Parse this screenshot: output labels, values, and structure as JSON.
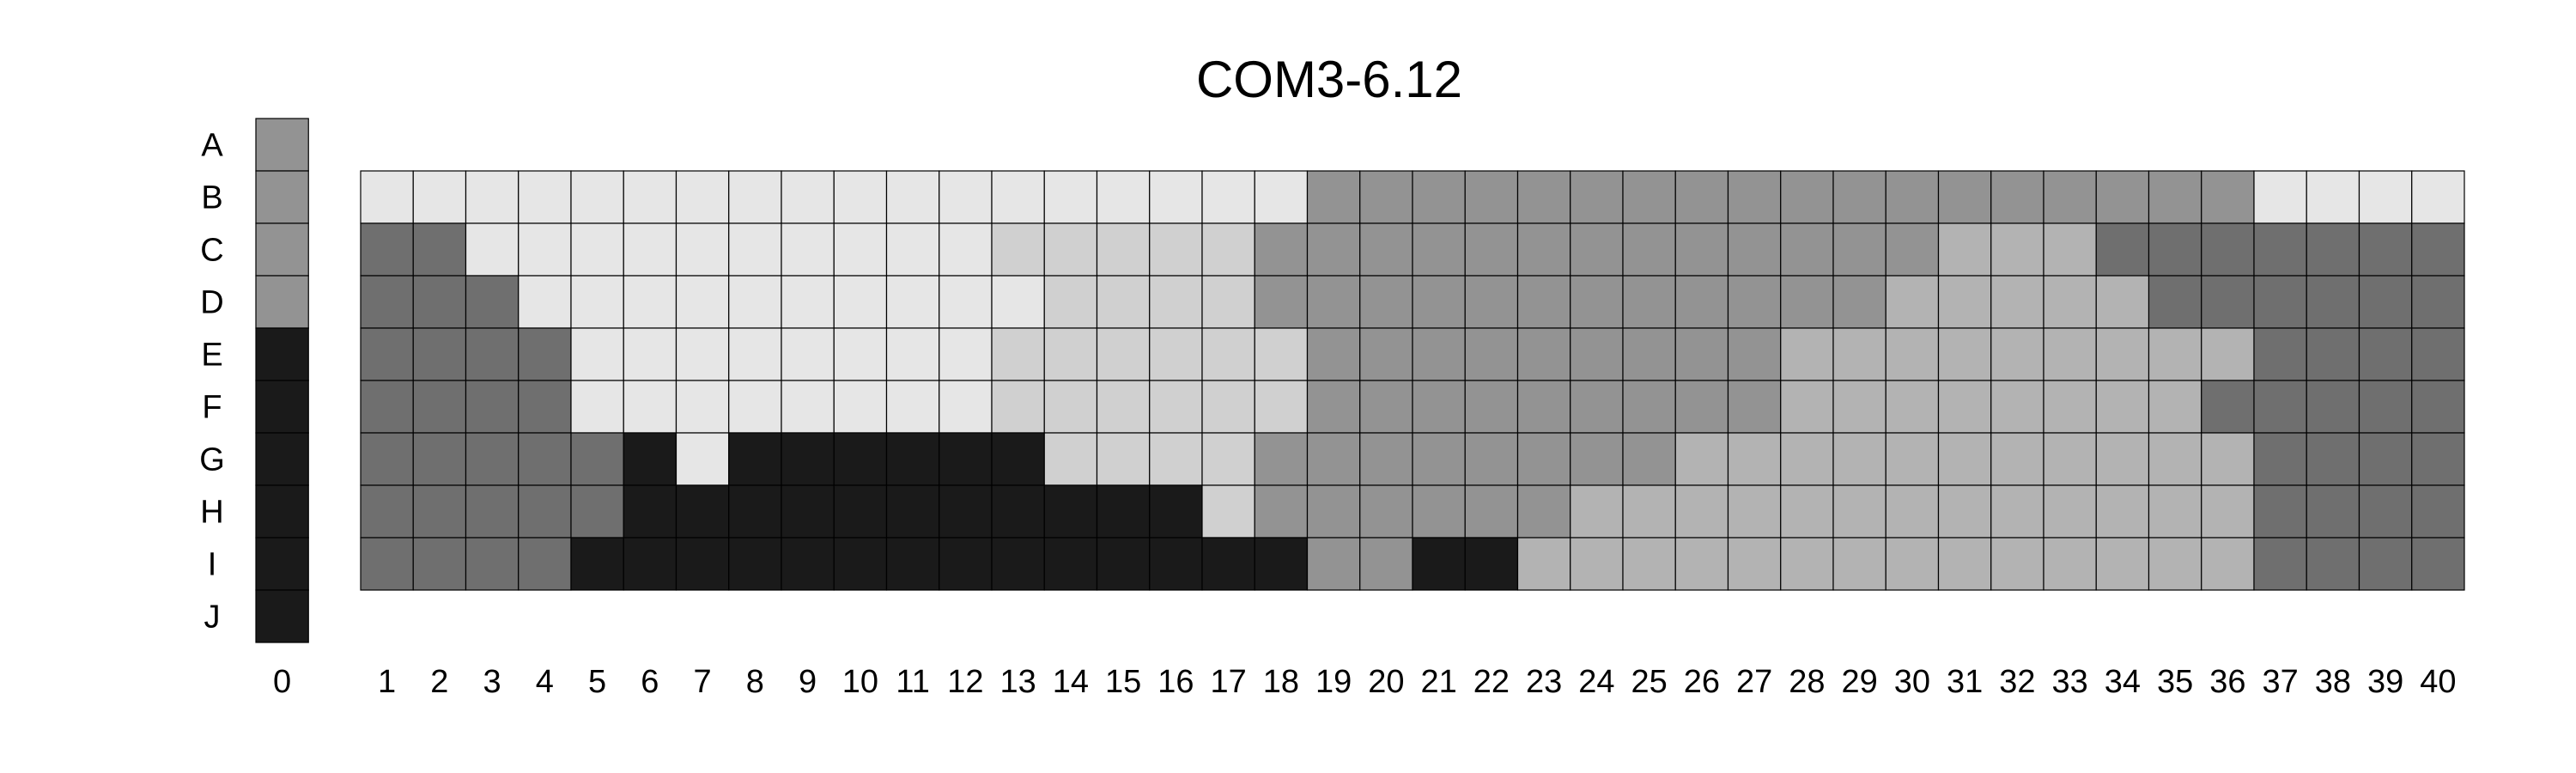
{
  "chart_data": {
    "type": "heatmap",
    "title": "COM3-6.12",
    "row_labels": [
      "A",
      "B",
      "C",
      "D",
      "E",
      "F",
      "G",
      "H",
      "I",
      "J"
    ],
    "col_labels": [
      "0",
      "1",
      "2",
      "3",
      "4",
      "5",
      "6",
      "7",
      "8",
      "9",
      "10",
      "11",
      "12",
      "13",
      "14",
      "15",
      "16",
      "17",
      "18",
      "19",
      "20",
      "21",
      "22",
      "23",
      "24",
      "25",
      "26",
      "27",
      "28",
      "29",
      "30",
      "31",
      "32",
      "33",
      "34",
      "35",
      "36",
      "37",
      "38",
      "39",
      "40"
    ],
    "level_colors": {
      "0": "#e6e6e6",
      "1": "#d0d0d0",
      "2": "#b3b3b3",
      "3": "#939393",
      "4": "#6f6f6f",
      "5": "#1a1a1a"
    },
    "column_0": [
      3,
      3,
      3,
      3,
      5,
      5,
      5,
      5,
      5,
      5
    ],
    "grid_rows": [
      "B",
      "C",
      "D",
      "E",
      "F",
      "G",
      "H",
      "I"
    ],
    "grid": [
      [
        0,
        0,
        0,
        0,
        0,
        0,
        0,
        0,
        0,
        0,
        0,
        0,
        0,
        0,
        0,
        0,
        0,
        0,
        3,
        3,
        3,
        3,
        3,
        3,
        3,
        3,
        3,
        3,
        3,
        3,
        3,
        3,
        3,
        3,
        3,
        3,
        0,
        0,
        0,
        0
      ],
      [
        4,
        4,
        0,
        0,
        0,
        0,
        0,
        0,
        0,
        0,
        0,
        0,
        1,
        1,
        1,
        1,
        1,
        3,
        3,
        3,
        3,
        3,
        3,
        3,
        3,
        3,
        3,
        3,
        3,
        3,
        2,
        2,
        2,
        4,
        4,
        4,
        4,
        4,
        4,
        4
      ],
      [
        4,
        4,
        4,
        0,
        0,
        0,
        0,
        0,
        0,
        0,
        0,
        0,
        0,
        1,
        1,
        1,
        1,
        3,
        3,
        3,
        3,
        3,
        3,
        3,
        3,
        3,
        3,
        3,
        3,
        2,
        2,
        2,
        2,
        2,
        4,
        4,
        4,
        4,
        4,
        4
      ],
      [
        4,
        4,
        4,
        4,
        0,
        0,
        0,
        0,
        0,
        0,
        0,
        0,
        1,
        1,
        1,
        1,
        1,
        1,
        3,
        3,
        3,
        3,
        3,
        3,
        3,
        3,
        3,
        2,
        2,
        2,
        2,
        2,
        2,
        2,
        2,
        2,
        4,
        4,
        4,
        4
      ],
      [
        4,
        4,
        4,
        4,
        0,
        0,
        0,
        0,
        0,
        0,
        0,
        0,
        1,
        1,
        1,
        1,
        1,
        1,
        3,
        3,
        3,
        3,
        3,
        3,
        3,
        3,
        3,
        2,
        2,
        2,
        2,
        2,
        2,
        2,
        2,
        4,
        4,
        4,
        4,
        4
      ],
      [
        4,
        4,
        4,
        4,
        4,
        5,
        0,
        5,
        5,
        5,
        5,
        5,
        5,
        1,
        1,
        1,
        1,
        3,
        3,
        3,
        3,
        3,
        3,
        3,
        3,
        2,
        2,
        2,
        2,
        2,
        2,
        2,
        2,
        2,
        2,
        2,
        4,
        4,
        4,
        4
      ],
      [
        4,
        4,
        4,
        4,
        4,
        5,
        5,
        5,
        5,
        5,
        5,
        5,
        5,
        5,
        5,
        5,
        1,
        3,
        3,
        3,
        3,
        3,
        3,
        2,
        2,
        2,
        2,
        2,
        2,
        2,
        2,
        2,
        2,
        2,
        2,
        2,
        4,
        4,
        4,
        4
      ],
      [
        4,
        4,
        4,
        4,
        5,
        5,
        5,
        5,
        5,
        5,
        5,
        5,
        5,
        5,
        5,
        5,
        5,
        5,
        3,
        3,
        5,
        5,
        2,
        2,
        2,
        2,
        2,
        2,
        2,
        2,
        2,
        2,
        2,
        2,
        2,
        2,
        4,
        4,
        4,
        4
      ]
    ]
  }
}
